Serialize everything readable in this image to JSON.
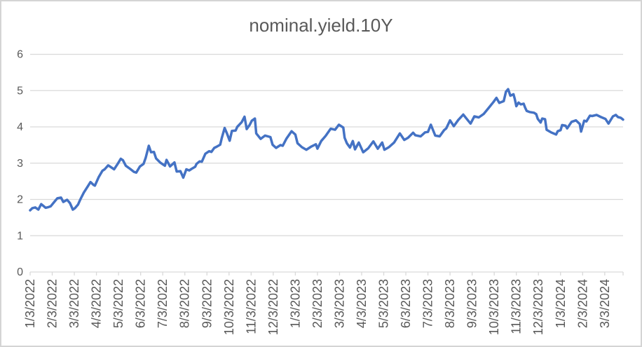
{
  "chart_data": {
    "type": "line",
    "title": "nominal.yield.10Y",
    "xlabel": "",
    "ylabel": "",
    "ylim": [
      0,
      6
    ],
    "y_ticks": [
      0,
      1,
      2,
      3,
      4,
      5,
      6
    ],
    "grid": "horizontal",
    "legend": "none",
    "x_unit": "months since 1/3/2022",
    "x_months_total": 26.83,
    "x_tick_labels": [
      "1/3/2022",
      "2/3/2022",
      "3/3/2022",
      "4/3/2022",
      "5/3/2022",
      "6/3/2022",
      "7/3/2022",
      "8/3/2022",
      "9/3/2022",
      "10/3/2022",
      "11/3/2022",
      "12/3/2022",
      "1/3/2023",
      "2/3/2023",
      "3/3/2023",
      "4/3/2023",
      "5/3/2023",
      "6/3/2023",
      "7/3/2023",
      "8/3/2023",
      "9/3/2023",
      "10/3/2023",
      "11/3/2023",
      "12/3/2023",
      "1/3/2024",
      "2/3/2024",
      "3/3/2024"
    ],
    "colors": {
      "line": "#4472C4",
      "grid": "#D9D9D9",
      "axis": "#D9D9D9",
      "text": "#595959",
      "border": "#D4D4D4",
      "background": "#FFFFFF"
    },
    "series": [
      {
        "name": "nominal.yield.10Y",
        "color": "#4472C4",
        "points": [
          [
            0.0,
            1.7
          ],
          [
            0.1,
            1.76
          ],
          [
            0.23,
            1.78
          ],
          [
            0.37,
            1.72
          ],
          [
            0.5,
            1.87
          ],
          [
            0.7,
            1.77
          ],
          [
            0.83,
            1.79
          ],
          [
            0.93,
            1.81
          ],
          [
            1.13,
            1.96
          ],
          [
            1.23,
            2.03
          ],
          [
            1.4,
            2.05
          ],
          [
            1.5,
            1.93
          ],
          [
            1.67,
            1.99
          ],
          [
            1.8,
            1.9
          ],
          [
            1.93,
            1.72
          ],
          [
            2.03,
            1.76
          ],
          [
            2.17,
            1.86
          ],
          [
            2.27,
            2.0
          ],
          [
            2.43,
            2.19
          ],
          [
            2.63,
            2.38
          ],
          [
            2.73,
            2.48
          ],
          [
            2.87,
            2.4
          ],
          [
            2.93,
            2.38
          ],
          [
            3.1,
            2.61
          ],
          [
            3.27,
            2.79
          ],
          [
            3.37,
            2.83
          ],
          [
            3.53,
            2.94
          ],
          [
            3.63,
            2.9
          ],
          [
            3.8,
            2.83
          ],
          [
            3.97,
            2.99
          ],
          [
            4.1,
            3.12
          ],
          [
            4.2,
            3.08
          ],
          [
            4.33,
            2.93
          ],
          [
            4.53,
            2.84
          ],
          [
            4.7,
            2.76
          ],
          [
            4.8,
            2.74
          ],
          [
            4.97,
            2.91
          ],
          [
            5.13,
            2.98
          ],
          [
            5.23,
            3.15
          ],
          [
            5.37,
            3.48
          ],
          [
            5.47,
            3.3
          ],
          [
            5.6,
            3.31
          ],
          [
            5.7,
            3.13
          ],
          [
            5.9,
            3.01
          ],
          [
            6.1,
            2.93
          ],
          [
            6.17,
            3.09
          ],
          [
            6.33,
            2.91
          ],
          [
            6.53,
            3.02
          ],
          [
            6.63,
            2.77
          ],
          [
            6.8,
            2.78
          ],
          [
            6.93,
            2.6
          ],
          [
            7.07,
            2.83
          ],
          [
            7.2,
            2.8
          ],
          [
            7.3,
            2.84
          ],
          [
            7.47,
            2.9
          ],
          [
            7.53,
            2.98
          ],
          [
            7.67,
            3.05
          ],
          [
            7.77,
            3.04
          ],
          [
            7.93,
            3.26
          ],
          [
            8.1,
            3.33
          ],
          [
            8.2,
            3.31
          ],
          [
            8.33,
            3.42
          ],
          [
            8.43,
            3.45
          ],
          [
            8.6,
            3.51
          ],
          [
            8.67,
            3.69
          ],
          [
            8.8,
            3.97
          ],
          [
            8.9,
            3.83
          ],
          [
            9.03,
            3.62
          ],
          [
            9.13,
            3.89
          ],
          [
            9.3,
            3.9
          ],
          [
            9.37,
            4.0
          ],
          [
            9.57,
            4.13
          ],
          [
            9.7,
            4.28
          ],
          [
            9.8,
            3.94
          ],
          [
            9.93,
            4.05
          ],
          [
            10.03,
            4.17
          ],
          [
            10.17,
            4.23
          ],
          [
            10.23,
            3.82
          ],
          [
            10.43,
            3.67
          ],
          [
            10.63,
            3.76
          ],
          [
            10.87,
            3.72
          ],
          [
            10.97,
            3.51
          ],
          [
            11.13,
            3.42
          ],
          [
            11.33,
            3.5
          ],
          [
            11.43,
            3.48
          ],
          [
            11.6,
            3.68
          ],
          [
            11.83,
            3.88
          ],
          [
            12.0,
            3.79
          ],
          [
            12.1,
            3.55
          ],
          [
            12.3,
            3.44
          ],
          [
            12.5,
            3.37
          ],
          [
            12.73,
            3.46
          ],
          [
            12.93,
            3.52
          ],
          [
            13.0,
            3.4
          ],
          [
            13.17,
            3.61
          ],
          [
            13.37,
            3.75
          ],
          [
            13.6,
            3.95
          ],
          [
            13.8,
            3.92
          ],
          [
            13.97,
            4.06
          ],
          [
            14.17,
            3.98
          ],
          [
            14.23,
            3.7
          ],
          [
            14.33,
            3.55
          ],
          [
            14.47,
            3.43
          ],
          [
            14.6,
            3.61
          ],
          [
            14.7,
            3.38
          ],
          [
            14.87,
            3.57
          ],
          [
            15.07,
            3.3
          ],
          [
            15.3,
            3.41
          ],
          [
            15.53,
            3.6
          ],
          [
            15.73,
            3.4
          ],
          [
            15.93,
            3.57
          ],
          [
            16.03,
            3.37
          ],
          [
            16.23,
            3.44
          ],
          [
            16.47,
            3.57
          ],
          [
            16.73,
            3.82
          ],
          [
            16.93,
            3.64
          ],
          [
            17.1,
            3.7
          ],
          [
            17.33,
            3.84
          ],
          [
            17.43,
            3.77
          ],
          [
            17.67,
            3.74
          ],
          [
            17.87,
            3.85
          ],
          [
            18.0,
            3.86
          ],
          [
            18.13,
            4.06
          ],
          [
            18.33,
            3.76
          ],
          [
            18.53,
            3.74
          ],
          [
            18.73,
            3.91
          ],
          [
            18.83,
            3.96
          ],
          [
            19.0,
            4.18
          ],
          [
            19.17,
            4.02
          ],
          [
            19.37,
            4.19
          ],
          [
            19.6,
            4.34
          ],
          [
            19.73,
            4.24
          ],
          [
            19.93,
            4.09
          ],
          [
            20.1,
            4.29
          ],
          [
            20.3,
            4.26
          ],
          [
            20.53,
            4.36
          ],
          [
            20.77,
            4.54
          ],
          [
            20.97,
            4.69
          ],
          [
            21.1,
            4.8
          ],
          [
            21.23,
            4.66
          ],
          [
            21.43,
            4.71
          ],
          [
            21.53,
            4.97
          ],
          [
            21.63,
            5.04
          ],
          [
            21.73,
            4.86
          ],
          [
            21.87,
            4.9
          ],
          [
            21.93,
            4.77
          ],
          [
            22.0,
            4.57
          ],
          [
            22.1,
            4.67
          ],
          [
            22.2,
            4.62
          ],
          [
            22.33,
            4.64
          ],
          [
            22.4,
            4.53
          ],
          [
            22.47,
            4.44
          ],
          [
            22.6,
            4.41
          ],
          [
            22.8,
            4.39
          ],
          [
            22.9,
            4.35
          ],
          [
            22.97,
            4.22
          ],
          [
            23.1,
            4.12
          ],
          [
            23.17,
            4.23
          ],
          [
            23.3,
            4.21
          ],
          [
            23.37,
            3.92
          ],
          [
            23.57,
            3.85
          ],
          [
            23.8,
            3.79
          ],
          [
            23.87,
            3.88
          ],
          [
            24.0,
            3.91
          ],
          [
            24.07,
            4.05
          ],
          [
            24.23,
            4.03
          ],
          [
            24.3,
            3.96
          ],
          [
            24.5,
            4.14
          ],
          [
            24.7,
            4.18
          ],
          [
            24.87,
            4.08
          ],
          [
            24.93,
            3.87
          ],
          [
            25.07,
            4.17
          ],
          [
            25.17,
            4.15
          ],
          [
            25.33,
            4.31
          ],
          [
            25.43,
            4.3
          ],
          [
            25.63,
            4.33
          ],
          [
            25.83,
            4.27
          ],
          [
            26.03,
            4.22
          ],
          [
            26.17,
            4.09
          ],
          [
            26.37,
            4.29
          ],
          [
            26.5,
            4.33
          ],
          [
            26.6,
            4.27
          ],
          [
            26.73,
            4.25
          ],
          [
            26.83,
            4.2
          ]
        ]
      }
    ]
  }
}
